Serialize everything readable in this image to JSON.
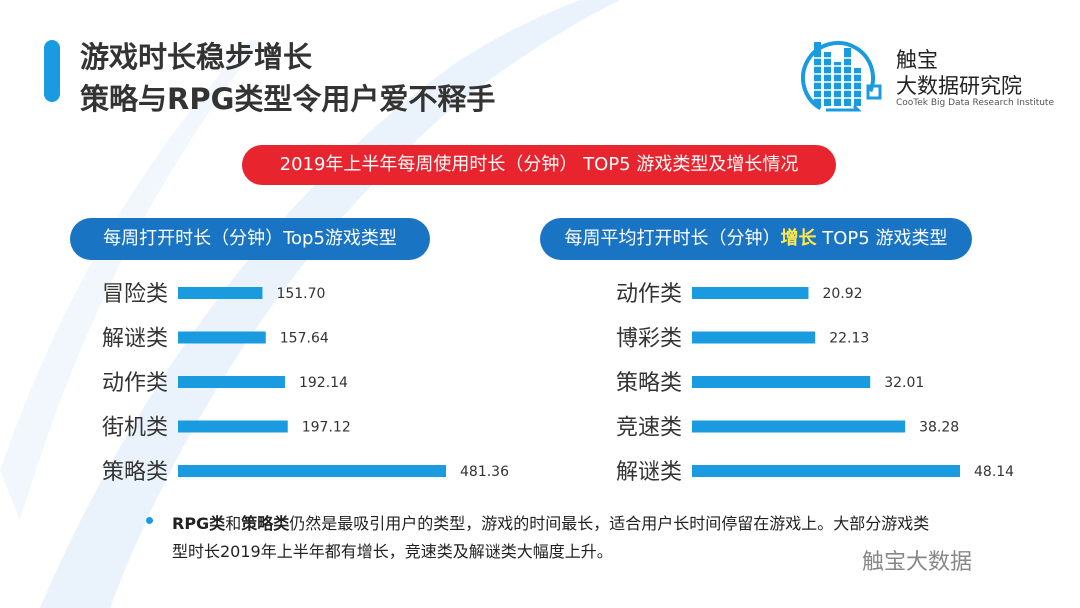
{
  "header": {
    "title_line1": "游戏时长稳步增长",
    "title_line2": "策略与RPG类型令用户爱不释手"
  },
  "logo": {
    "cn_line1": "触宝",
    "cn_line2": "大数据研究院",
    "en": "CooTek Big Data Research Institute"
  },
  "banner": "2019年上半年每周使用时长（分钟） TOP5 游戏类型及增长情况",
  "left_pill": "每周打开时长（分钟）Top5游戏类型",
  "right_pill": {
    "prefix": "每周平均打开时长（分钟）",
    "highlight": "增长",
    "suffix": " TOP5 游戏类型"
  },
  "note": {
    "b1": "RPG类",
    "t1": "和",
    "b2": "策略类",
    "t2": "仍然是最吸引用户的类型，游戏的时间最长，适合用户长时间停留在游戏上。大部分游戏类型时长2019年上半年都有增长，竞速类及解谜类大幅度上升。"
  },
  "watermark": "触宝大数据",
  "colors": {
    "bar": "#1a9be0",
    "banner": "#e8252e",
    "pill": "#1a74c4",
    "highlight": "#ffe84a"
  },
  "chart_data": [
    {
      "type": "bar",
      "orientation": "horizontal",
      "title": "每周打开时长（分钟）Top5游戏类型",
      "categories": [
        "冒险类",
        "解谜类",
        "动作类",
        "街机类",
        "策略类"
      ],
      "values": [
        151.7,
        157.64,
        192.14,
        197.12,
        481.36
      ],
      "labels": [
        "151.70",
        "157.64",
        "192.14",
        "197.12",
        "481.36"
      ]
    },
    {
      "type": "bar",
      "orientation": "horizontal",
      "title": "每周平均打开时长（分钟）增长 TOP5 游戏类型",
      "categories": [
        "动作类",
        "博彩类",
        "策略类",
        "竞速类",
        "解谜类"
      ],
      "values": [
        20.92,
        22.13,
        32.01,
        38.28,
        48.14
      ],
      "labels": [
        "20.92",
        "22.13",
        "32.01",
        "38.28",
        "48.14"
      ]
    }
  ]
}
